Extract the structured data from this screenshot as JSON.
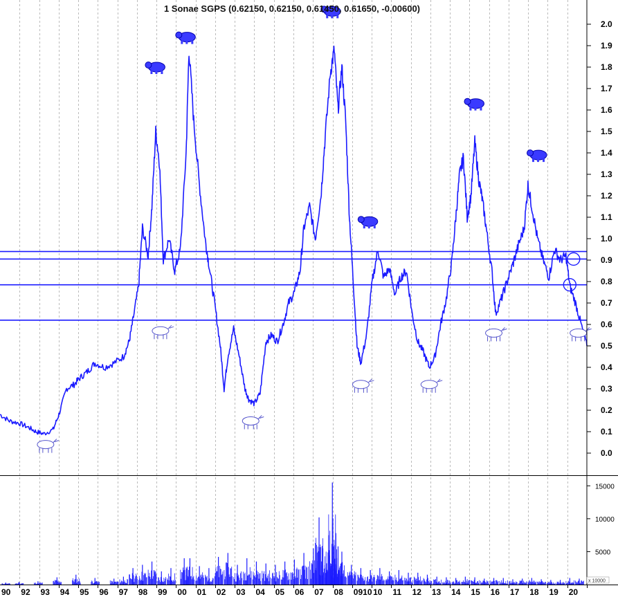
{
  "chart_data": [
    {
      "type": "line",
      "title": "1 Sonae SGPS (0.62150, 0.62150, 0.61450, 0.61650, -0.00600)",
      "xlabel": "",
      "ylabel": "",
      "x_tick_labels": [
        "90",
        "92",
        "93",
        "94",
        "95",
        "96",
        "97",
        "98",
        "99",
        "00",
        "01",
        "02",
        "03",
        "04",
        "05",
        "06",
        "07",
        "08",
        "0910",
        "10",
        "11",
        "12",
        "13",
        "14",
        "15",
        "16",
        "17",
        "18",
        "19",
        "20"
      ],
      "y_tick_labels": [
        "2.0",
        "1.9",
        "1.8",
        "1.7",
        "1.6",
        "1.5",
        "1.4",
        "1.3",
        "1.2",
        "1.1",
        "1.0",
        "0.9",
        "0.8",
        "0.7",
        "0.6",
        "0.5",
        "0.4",
        "0.3",
        "0.2",
        "0.1",
        "0.0"
      ],
      "ylim": [
        -0.05,
        2.05
      ],
      "xlim": [
        1990.0,
        2020.9
      ],
      "grid": "vertical dashed",
      "horizontal_levels": [
        0.94,
        0.905,
        0.785,
        0.62
      ],
      "series": [
        {
          "color": "#1a1aff",
          "points": [
            [
              1990.0,
              0.18
            ],
            [
              1990.5,
              0.15
            ],
            [
              1991.0,
              0.14
            ],
            [
              1991.5,
              0.12
            ],
            [
              1991.9,
              0.1
            ],
            [
              1992.3,
              0.09
            ],
            [
              1992.8,
              0.11
            ],
            [
              1993.1,
              0.18
            ],
            [
              1993.5,
              0.3
            ],
            [
              1993.9,
              0.32
            ],
            [
              1994.2,
              0.35
            ],
            [
              1994.6,
              0.38
            ],
            [
              1995.0,
              0.42
            ],
            [
              1995.5,
              0.4
            ],
            [
              1996.0,
              0.42
            ],
            [
              1996.5,
              0.45
            ],
            [
              1996.8,
              0.52
            ],
            [
              1997.0,
              0.62
            ],
            [
              1997.3,
              0.78
            ],
            [
              1997.5,
              1.05
            ],
            [
              1997.8,
              0.92
            ],
            [
              1998.0,
              1.15
            ],
            [
              1998.2,
              1.5
            ],
            [
              1998.4,
              1.35
            ],
            [
              1998.6,
              0.9
            ],
            [
              1998.9,
              1.0
            ],
            [
              1999.2,
              0.85
            ],
            [
              1999.5,
              0.95
            ],
            [
              1999.8,
              1.4
            ],
            [
              1999.95,
              1.88
            ],
            [
              2000.2,
              1.55
            ],
            [
              2000.5,
              1.25
            ],
            [
              2000.8,
              1.0
            ],
            [
              2001.0,
              0.88
            ],
            [
              2001.3,
              0.7
            ],
            [
              2001.6,
              0.5
            ],
            [
              2001.8,
              0.3
            ],
            [
              2002.0,
              0.45
            ],
            [
              2002.3,
              0.58
            ],
            [
              2002.6,
              0.45
            ],
            [
              2002.9,
              0.3
            ],
            [
              2003.1,
              0.25
            ],
            [
              2003.4,
              0.23
            ],
            [
              2003.7,
              0.28
            ],
            [
              2004.0,
              0.52
            ],
            [
              2004.3,
              0.55
            ],
            [
              2004.6,
              0.52
            ],
            [
              2004.9,
              0.6
            ],
            [
              2005.2,
              0.7
            ],
            [
              2005.5,
              0.75
            ],
            [
              2005.8,
              0.85
            ],
            [
              2006.0,
              1.05
            ],
            [
              2006.3,
              1.15
            ],
            [
              2006.6,
              1.0
            ],
            [
              2006.9,
              1.2
            ],
            [
              2007.1,
              1.45
            ],
            [
              2007.4,
              1.78
            ],
            [
              2007.6,
              1.88
            ],
            [
              2007.8,
              1.6
            ],
            [
              2008.0,
              1.8
            ],
            [
              2008.2,
              1.55
            ],
            [
              2008.4,
              1.1
            ],
            [
              2008.6,
              0.8
            ],
            [
              2008.8,
              0.5
            ],
            [
              2009.0,
              0.42
            ],
            [
              2009.3,
              0.55
            ],
            [
              2009.6,
              0.8
            ],
            [
              2009.9,
              0.95
            ],
            [
              2010.2,
              0.82
            ],
            [
              2010.5,
              0.86
            ],
            [
              2010.8,
              0.74
            ],
            [
              2011.1,
              0.82
            ],
            [
              2011.4,
              0.85
            ],
            [
              2011.7,
              0.65
            ],
            [
              2012.0,
              0.52
            ],
            [
              2012.3,
              0.47
            ],
            [
              2012.6,
              0.4
            ],
            [
              2012.9,
              0.45
            ],
            [
              2013.2,
              0.6
            ],
            [
              2013.5,
              0.72
            ],
            [
              2013.8,
              0.9
            ],
            [
              2014.0,
              1.1
            ],
            [
              2014.2,
              1.3
            ],
            [
              2014.4,
              1.38
            ],
            [
              2014.6,
              1.1
            ],
            [
              2014.8,
              1.2
            ],
            [
              2015.0,
              1.45
            ],
            [
              2015.2,
              1.28
            ],
            [
              2015.4,
              1.18
            ],
            [
              2015.6,
              1.05
            ],
            [
              2015.9,
              0.85
            ],
            [
              2016.1,
              0.65
            ],
            [
              2016.4,
              0.72
            ],
            [
              2016.7,
              0.8
            ],
            [
              2017.0,
              0.88
            ],
            [
              2017.3,
              0.97
            ],
            [
              2017.6,
              1.05
            ],
            [
              2017.8,
              1.25
            ],
            [
              2018.0,
              1.15
            ],
            [
              2018.3,
              1.0
            ],
            [
              2018.6,
              0.9
            ],
            [
              2018.9,
              0.82
            ],
            [
              2019.2,
              0.95
            ],
            [
              2019.5,
              0.9
            ],
            [
              2019.8,
              0.92
            ],
            [
              2020.0,
              0.78
            ],
            [
              2020.3,
              0.7
            ],
            [
              2020.6,
              0.6
            ],
            [
              2020.9,
              0.5
            ]
          ]
        }
      ],
      "markers": {
        "bear": [
          [
            1998.25,
            1.8
          ],
          [
            1999.85,
            1.94
          ],
          [
            2007.5,
            2.06
          ],
          [
            2009.45,
            1.08
          ],
          [
            2015.05,
            1.63
          ],
          [
            2018.35,
            1.39
          ]
        ],
        "bull": [
          [
            1992.4,
            0.04
          ],
          [
            1998.45,
            0.57
          ],
          [
            2003.2,
            0.15
          ],
          [
            2009.0,
            0.32
          ],
          [
            2012.6,
            0.32
          ],
          [
            2016.0,
            0.56
          ],
          [
            2020.45,
            0.56
          ]
        ],
        "circle": [
          [
            2020.2,
            0.905
          ],
          [
            2020.0,
            0.785
          ]
        ]
      }
    },
    {
      "type": "bar",
      "title": "",
      "y_tick_labels": [
        "15000",
        "10000",
        "5000"
      ],
      "unit_label": "x 10000",
      "ylim": [
        0,
        16500
      ],
      "color": "#1a1aff",
      "x": [
        1990.3,
        1991.0,
        1992.0,
        1993.0,
        1994.0,
        1995.0,
        1996.0,
        1996.5,
        1997.0,
        1997.5,
        1998.0,
        1998.5,
        1999.0,
        1999.7,
        2000.0,
        2000.5,
        2001.0,
        2001.5,
        2002.0,
        2002.5,
        2003.0,
        2003.5,
        2004.0,
        2004.5,
        2005.0,
        2005.5,
        2006.0,
        2006.5,
        2006.8,
        2007.0,
        2007.3,
        2007.5,
        2007.6,
        2007.8,
        2008.0,
        2008.5,
        2009.0,
        2009.5,
        2010.0,
        2010.5,
        2011.0,
        2011.5,
        2012.0,
        2012.5,
        2013.0,
        2013.5,
        2014.0,
        2014.5,
        2015.0,
        2015.5,
        2016.0,
        2016.5,
        2017.0,
        2017.5,
        2018.0,
        2018.5,
        2019.0,
        2019.5,
        2020.0,
        2020.5
      ],
      "values": [
        300,
        400,
        500,
        1100,
        1500,
        1000,
        900,
        1200,
        2500,
        3000,
        3500,
        2000,
        2500,
        4000,
        4000,
        2800,
        2500,
        4200,
        4800,
        3000,
        4000,
        3500,
        3200,
        3000,
        3500,
        3800,
        4800,
        5500,
        10200,
        5500,
        7500,
        15500,
        6000,
        5800,
        5000,
        3000,
        2500,
        2200,
        2500,
        2000,
        2200,
        1800,
        1800,
        1500,
        1200,
        1100,
        1000,
        1200,
        1100,
        900,
        1000,
        1000,
        800,
        900,
        1000,
        800,
        700,
        700,
        1000,
        900
      ]
    }
  ]
}
